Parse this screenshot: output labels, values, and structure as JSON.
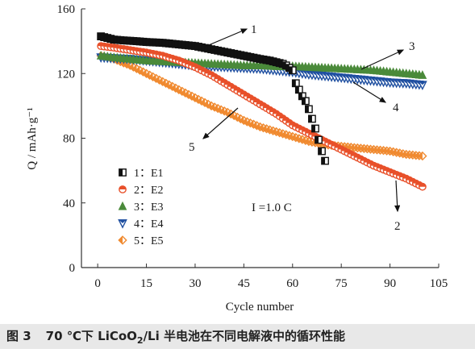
{
  "chart_data": {
    "type": "scatter",
    "xlabel": "Cycle number",
    "ylabel": "Q / mAh·g⁻¹",
    "xlim": [
      -5,
      105
    ],
    "ylim": [
      0,
      160
    ],
    "xticks": [
      0,
      15,
      30,
      45,
      60,
      75,
      90,
      105
    ],
    "yticks": [
      0,
      40,
      80,
      120,
      160
    ],
    "grid": false,
    "legend_position": "lower-left",
    "condition_label": "I =1.0 C",
    "series": [
      {
        "name": "1：E1",
        "marker": "square",
        "color": "#111111",
        "x": [
          1,
          3,
          5,
          8,
          12,
          15,
          20,
          25,
          30,
          35,
          40,
          45,
          50,
          53,
          55,
          57,
          58,
          60,
          61,
          62,
          63,
          64,
          65,
          66,
          67,
          68,
          69,
          70
        ],
        "values": [
          143,
          142,
          141,
          140.5,
          140,
          139.5,
          139,
          138,
          137,
          135,
          133,
          131,
          129,
          128,
          127,
          126,
          125,
          122,
          114,
          110,
          106,
          103,
          98,
          92,
          86,
          79,
          72,
          66
        ]
      },
      {
        "name": "2：E2",
        "marker": "circle",
        "color": "#e8502a",
        "x": [
          1,
          5,
          10,
          15,
          20,
          25,
          30,
          35,
          40,
          45,
          50,
          55,
          60,
          65,
          70,
          75,
          80,
          85,
          90,
          95,
          100
        ],
        "values": [
          137,
          136,
          134.5,
          133,
          131,
          128,
          124,
          119,
          113,
          107,
          101,
          95,
          88,
          83,
          78,
          73,
          68,
          63,
          59,
          55,
          50
        ]
      },
      {
        "name": "3：E3",
        "marker": "triangle-up",
        "color": "#4a8a3a",
        "x": [
          1,
          5,
          10,
          15,
          20,
          25,
          30,
          35,
          40,
          45,
          50,
          55,
          60,
          65,
          70,
          75,
          80,
          85,
          90,
          95,
          100
        ],
        "values": [
          131,
          130,
          129,
          128,
          127.5,
          127,
          126.5,
          126,
          125.5,
          125,
          125,
          124.5,
          124.5,
          124,
          123.5,
          123,
          122.5,
          122,
          121,
          120,
          119
        ]
      },
      {
        "name": "4：E4",
        "marker": "triangle-down",
        "color": "#1f4fa0",
        "x": [
          1,
          5,
          10,
          15,
          20,
          25,
          30,
          35,
          40,
          45,
          50,
          55,
          60,
          65,
          70,
          75,
          80,
          85,
          90,
          95,
          100
        ],
        "values": [
          130,
          129.5,
          129,
          128,
          127,
          126,
          125,
          124.5,
          124,
          123.5,
          123,
          122,
          121,
          119.5,
          118.5,
          117.5,
          116.5,
          115.5,
          114.5,
          114,
          113
        ]
      },
      {
        "name": "5：E5",
        "marker": "diamond",
        "color": "#f08a30",
        "x": [
          1,
          5,
          10,
          15,
          20,
          25,
          30,
          35,
          40,
          45,
          50,
          55,
          60,
          65,
          70,
          75,
          80,
          85,
          90,
          95,
          100
        ],
        "values": [
          131,
          129,
          125,
          120,
          115,
          110,
          105,
          100,
          96,
          91,
          87,
          84,
          81,
          78,
          76,
          75,
          74,
          73,
          72,
          70,
          69
        ]
      }
    ],
    "annotations": [
      {
        "text": "1",
        "points_to": "series 1, before its steep drop"
      },
      {
        "text": "2",
        "points_to": "series 2, near cycle 100"
      },
      {
        "text": "3",
        "points_to": "series 3, middle"
      },
      {
        "text": "4",
        "points_to": "series 4, cycle ~80"
      },
      {
        "text": "5",
        "points_to": "series 5, cycle ~45"
      }
    ]
  },
  "caption": {
    "figure_label": "图 3",
    "text_before": "70 ℃下 LiCoO",
    "subscript": "2",
    "text_after": "/Li 半电池在不同电解液中的循环性能"
  }
}
